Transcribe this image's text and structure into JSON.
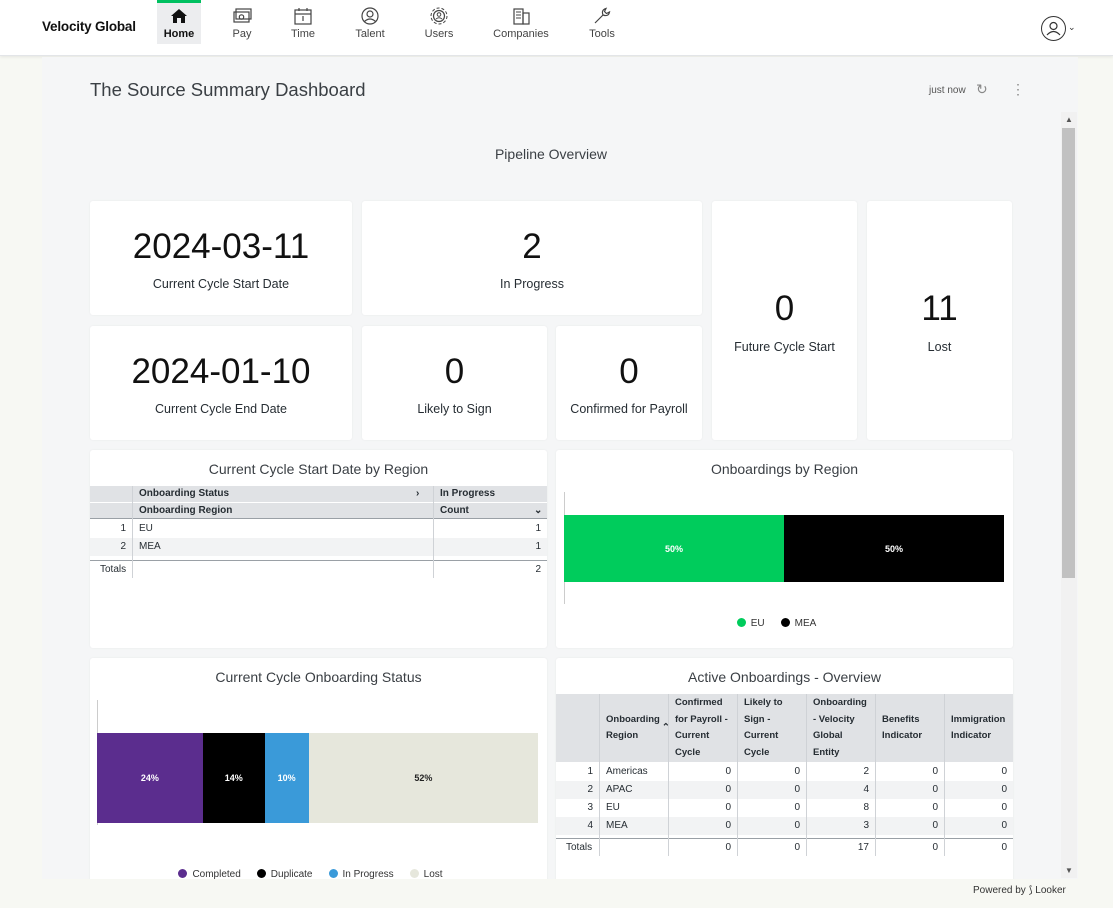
{
  "nav": {
    "brand": "Velocity Global",
    "items": [
      {
        "label": "Home",
        "icon": "home-icon"
      },
      {
        "label": "Pay",
        "icon": "money-icon"
      },
      {
        "label": "Time",
        "icon": "calendar-icon"
      },
      {
        "label": "Talent",
        "icon": "talent-icon"
      },
      {
        "label": "Users",
        "icon": "users-gear-icon"
      },
      {
        "label": "Companies",
        "icon": "building-icon"
      },
      {
        "label": "Tools",
        "icon": "wrench-icon"
      }
    ],
    "active": "Home"
  },
  "dashboard": {
    "title": "The Source Summary Dashboard",
    "updated": "just now",
    "section_title": "Pipeline Overview"
  },
  "kpis": {
    "start_date": {
      "value": "2024-03-11",
      "label": "Current Cycle Start Date"
    },
    "in_progress": {
      "value": "2",
      "label": "In Progress"
    },
    "future_cycle": {
      "value": "0",
      "label": "Future Cycle Start"
    },
    "lost": {
      "value": "11",
      "label": "Lost"
    },
    "end_date": {
      "value": "2024-01-10",
      "label": "Current Cycle End Date"
    },
    "likely_sign": {
      "value": "0",
      "label": "Likely to Sign"
    },
    "confirmed_payroll": {
      "value": "0",
      "label": "Confirmed for Payroll"
    }
  },
  "region_table": {
    "title": "Current Cycle Start Date by Region",
    "pivot_header": "Onboarding Status",
    "pivot_value": "In Progress",
    "row_header": "Onboarding Region",
    "measure_header": "Count",
    "rows": [
      {
        "n": "1",
        "region": "EU",
        "count": "1"
      },
      {
        "n": "2",
        "region": "MEA",
        "count": "1"
      }
    ],
    "totals_label": "Totals",
    "total": "2"
  },
  "onboardings_by_region": {
    "title": "Onboardings by Region",
    "segments": [
      {
        "name": "EU",
        "label": "50%",
        "color": "#00cc5c"
      },
      {
        "name": "MEA",
        "label": "50%",
        "color": "#000000"
      }
    ]
  },
  "onboarding_status": {
    "title": "Current Cycle Onboarding Status",
    "segments": [
      {
        "name": "Completed",
        "label": "24%",
        "color": "#5b2d8e"
      },
      {
        "name": "Duplicate",
        "label": "14%",
        "color": "#000000"
      },
      {
        "name": "In Progress",
        "label": "10%",
        "color": "#3a9ad9"
      },
      {
        "name": "Lost",
        "label": "52%",
        "color": "#e6e7dc"
      }
    ]
  },
  "chart_data": [
    {
      "type": "bar",
      "title": "Onboardings by Region",
      "stacked": "percent",
      "series": [
        {
          "name": "EU",
          "values": [
            50
          ]
        },
        {
          "name": "MEA",
          "values": [
            50
          ]
        }
      ],
      "legend": "bottom"
    },
    {
      "type": "bar",
      "title": "Current Cycle Onboarding Status",
      "stacked": "percent",
      "series": [
        {
          "name": "Completed",
          "values": [
            24
          ]
        },
        {
          "name": "Duplicate",
          "values": [
            14
          ]
        },
        {
          "name": "In Progress",
          "values": [
            10
          ]
        },
        {
          "name": "Lost",
          "values": [
            52
          ]
        }
      ],
      "legend": "bottom"
    }
  ],
  "overview_table": {
    "title": "Active Onboardings - Overview",
    "headers": [
      "Onboarding Region",
      "Confirmed for Payroll - Current Cycle",
      "Likely to Sign - Current Cycle",
      "Onboarding - Velocity Global Entity",
      "Benefits Indicator",
      "Immigration Indicator"
    ],
    "rows": [
      {
        "n": "1",
        "cells": [
          "Americas",
          "0",
          "0",
          "2",
          "0",
          "0"
        ]
      },
      {
        "n": "2",
        "cells": [
          "APAC",
          "0",
          "0",
          "4",
          "0",
          "0"
        ]
      },
      {
        "n": "3",
        "cells": [
          "EU",
          "0",
          "0",
          "8",
          "0",
          "0"
        ]
      },
      {
        "n": "4",
        "cells": [
          "MEA",
          "0",
          "0",
          "3",
          "0",
          "0"
        ]
      }
    ],
    "totals_label": "Totals",
    "totals": [
      "",
      "0",
      "0",
      "17",
      "0",
      "0"
    ]
  },
  "footer": {
    "powered_by": "Powered by ⟆ Looker"
  }
}
